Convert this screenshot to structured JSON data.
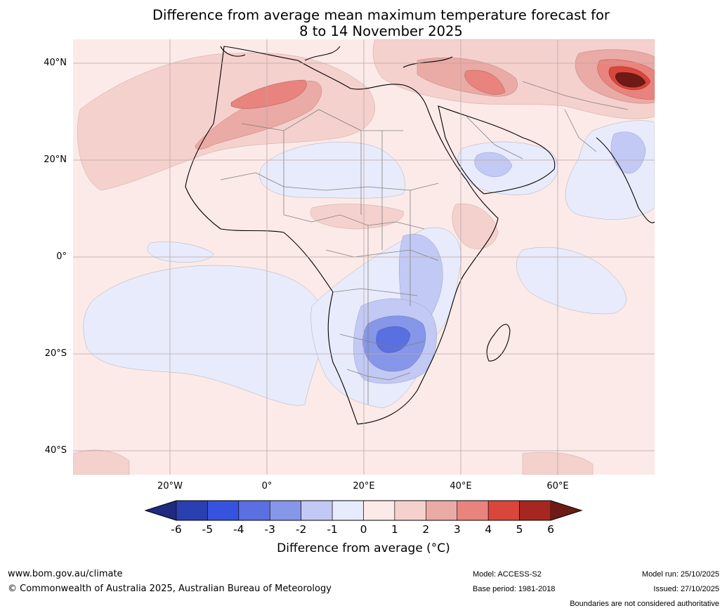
{
  "title": {
    "line1": "Difference from average mean maximum temperature forecast for",
    "line2": "8 to 14 November 2025"
  },
  "map": {
    "latitude_labels": [
      "40°N",
      "20°N",
      "0°",
      "20°S",
      "40°S"
    ],
    "longitude_labels": [
      "20°W",
      "0°",
      "20°E",
      "40°E",
      "60°E"
    ]
  },
  "colorbar": {
    "title": "Difference from average (°C)",
    "tick_labels": [
      "-6",
      "-5",
      "-4",
      "-3",
      "-2",
      "-1",
      "0",
      "1",
      "2",
      "3",
      "4",
      "5",
      "6"
    ],
    "bin_colors": [
      "#1f2a80",
      "#2a3fb0",
      "#3553de",
      "#5a6fe0",
      "#8696e8",
      "#c2c9f4",
      "#e8ebfb",
      "#fbeae8",
      "#f5d1cd",
      "#eaaaa5",
      "#e8847d",
      "#d9463c",
      "#a6271f",
      "#6e1a16"
    ]
  },
  "footer": {
    "website": "www.bom.gov.au/climate",
    "copyright": "© Commonwealth of Australia 2025, Australian Bureau of Meteorology",
    "model": "Model: ACCESS-S2",
    "base_period": "Base period: 1981-2018",
    "model_run": "Model run: 25/10/2025",
    "issued": "Issued: 27/10/2025",
    "disclaimer": "Boundaries are not considered authoritative"
  }
}
